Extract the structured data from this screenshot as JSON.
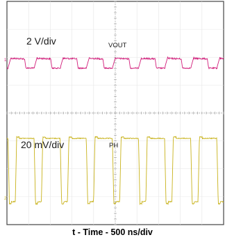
{
  "chart_data": {
    "type": "line",
    "xlabel": "t - Time - 500 ns/div",
    "grid": true,
    "series": [
      {
        "name": "VOUT",
        "scale_label": "2 V/div",
        "color": "#d11d7a",
        "kind": "vout-ripple",
        "pulse_count": 8
      },
      {
        "name": "PH",
        "scale_label": "20 mV/div",
        "color": "#c8b21a",
        "kind": "switch-node",
        "pulse_count": 8
      }
    ],
    "channel_markers": [
      "1",
      "2"
    ]
  }
}
